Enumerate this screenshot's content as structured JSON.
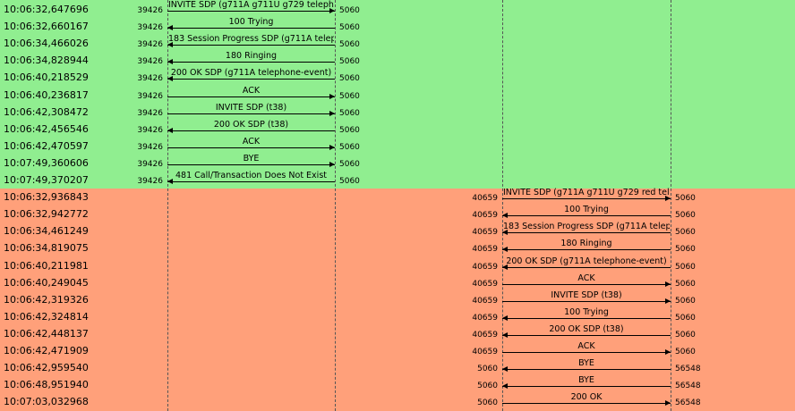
{
  "colors": {
    "call1_band": "#90ee90",
    "call2_band": "#ffa07a",
    "lifeline": "#555555",
    "arrow": "#000000"
  },
  "rows": [
    {
      "time": "10:06:32,647696",
      "call": 1,
      "label": "INVITE SDP (g711A g711U g729 telepho...",
      "dir": "right",
      "left_port": "39426",
      "right_port": "5060"
    },
    {
      "time": "10:06:32,660167",
      "call": 1,
      "label": "100 Trying",
      "dir": "left",
      "left_port": "39426",
      "right_port": "5060"
    },
    {
      "time": "10:06:34,466026",
      "call": 1,
      "label": "183 Session Progress SDP (g711A telepho...",
      "dir": "left",
      "left_port": "39426",
      "right_port": "5060"
    },
    {
      "time": "10:06:34,828944",
      "call": 1,
      "label": "180 Ringing",
      "dir": "left",
      "left_port": "39426",
      "right_port": "5060"
    },
    {
      "time": "10:06:40,218529",
      "call": 1,
      "label": "200 OK SDP (g711A telephone-event)",
      "dir": "left",
      "left_port": "39426",
      "right_port": "5060"
    },
    {
      "time": "10:06:40,236817",
      "call": 1,
      "label": "ACK",
      "dir": "right",
      "left_port": "39426",
      "right_port": "5060"
    },
    {
      "time": "10:06:42,308472",
      "call": 1,
      "label": "INVITE SDP (t38)",
      "dir": "right",
      "left_port": "39426",
      "right_port": "5060"
    },
    {
      "time": "10:06:42,456546",
      "call": 1,
      "label": "200 OK SDP (t38)",
      "dir": "left",
      "left_port": "39426",
      "right_port": "5060"
    },
    {
      "time": "10:06:42,470597",
      "call": 1,
      "label": "ACK",
      "dir": "right",
      "left_port": "39426",
      "right_port": "5060"
    },
    {
      "time": "10:07:49,360606",
      "call": 1,
      "label": "BYE",
      "dir": "right",
      "left_port": "39426",
      "right_port": "5060"
    },
    {
      "time": "10:07:49,370207",
      "call": 1,
      "label": "481 Call/Transaction Does Not Exist",
      "dir": "left",
      "left_port": "39426",
      "right_port": "5060"
    },
    {
      "time": "10:06:32,936843",
      "call": 2,
      "label": "INVITE SDP (g711A g711U g729 red tele...",
      "dir": "right",
      "left_port": "40659",
      "right_port": "5060"
    },
    {
      "time": "10:06:32,942772",
      "call": 2,
      "label": "100 Trying",
      "dir": "left",
      "left_port": "40659",
      "right_port": "5060"
    },
    {
      "time": "10:06:34,461249",
      "call": 2,
      "label": "183 Session Progress SDP (g711A telephon...",
      "dir": "left",
      "left_port": "40659",
      "right_port": "5060"
    },
    {
      "time": "10:06:34,819075",
      "call": 2,
      "label": "180 Ringing",
      "dir": "left",
      "left_port": "40659",
      "right_port": "5060"
    },
    {
      "time": "10:06:40,211981",
      "call": 2,
      "label": "200 OK SDP (g711A telephone-event)",
      "dir": "left",
      "left_port": "40659",
      "right_port": "5060"
    },
    {
      "time": "10:06:40,249045",
      "call": 2,
      "label": "ACK",
      "dir": "right",
      "left_port": "40659",
      "right_port": "5060"
    },
    {
      "time": "10:06:42,319326",
      "call": 2,
      "label": "INVITE SDP (t38)",
      "dir": "right",
      "left_port": "40659",
      "right_port": "5060"
    },
    {
      "time": "10:06:42,324814",
      "call": 2,
      "label": "100 Trying",
      "dir": "left",
      "left_port": "40659",
      "right_port": "5060"
    },
    {
      "time": "10:06:42,448137",
      "call": 2,
      "label": "200 OK SDP (t38)",
      "dir": "left",
      "left_port": "40659",
      "right_port": "5060"
    },
    {
      "time": "10:06:42,471909",
      "call": 2,
      "label": "ACK",
      "dir": "right",
      "left_port": "40659",
      "right_port": "5060"
    },
    {
      "time": "10:06:42,959540",
      "call": 2,
      "label": "BYE",
      "dir": "left",
      "left_port": "5060",
      "right_port": "56548"
    },
    {
      "time": "10:06:48,951940",
      "call": 2,
      "label": "BYE",
      "dir": "left",
      "left_port": "5060",
      "right_port": "56548"
    },
    {
      "time": "10:07:03,032968",
      "call": 2,
      "label": "200 OK",
      "dir": "right",
      "left_port": "5060",
      "right_port": "56548"
    }
  ]
}
